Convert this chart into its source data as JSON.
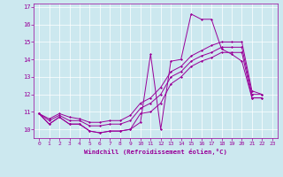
{
  "xlabel": "Windchill (Refroidissement éolien,°C)",
  "background_color": "#cce8ef",
  "line_color": "#990099",
  "xlim": [
    -0.5,
    23.5
  ],
  "ylim": [
    9.5,
    17.2
  ],
  "xticks": [
    0,
    1,
    2,
    3,
    4,
    5,
    6,
    7,
    8,
    9,
    10,
    11,
    12,
    13,
    14,
    15,
    16,
    17,
    18,
    19,
    20,
    21,
    22,
    23
  ],
  "yticks": [
    10,
    11,
    12,
    13,
    14,
    15,
    16,
    17
  ],
  "series": [
    [
      10.9,
      10.3,
      10.7,
      10.3,
      10.3,
      9.9,
      9.8,
      9.9,
      9.9,
      10.0,
      10.4,
      14.3,
      10.0,
      13.9,
      14.0,
      16.6,
      16.3,
      16.3,
      14.6,
      14.3,
      13.9,
      11.8,
      11.8
    ],
    [
      10.9,
      10.3,
      10.7,
      10.3,
      10.3,
      9.9,
      9.8,
      9.9,
      9.9,
      10.0,
      10.9,
      11.0,
      11.5,
      12.6,
      13.0,
      13.6,
      13.9,
      14.1,
      14.4,
      14.4,
      14.4,
      11.8,
      11.8
    ],
    [
      10.9,
      10.5,
      10.8,
      10.5,
      10.5,
      10.2,
      10.2,
      10.3,
      10.3,
      10.5,
      11.2,
      11.5,
      12.0,
      13.0,
      13.3,
      13.9,
      14.2,
      14.4,
      14.7,
      14.7,
      14.7,
      12.0,
      12.0
    ],
    [
      10.9,
      10.6,
      10.9,
      10.7,
      10.6,
      10.4,
      10.4,
      10.5,
      10.5,
      10.8,
      11.5,
      11.8,
      12.4,
      13.3,
      13.6,
      14.2,
      14.5,
      14.8,
      15.0,
      15.0,
      15.0,
      12.2,
      12.0
    ]
  ]
}
